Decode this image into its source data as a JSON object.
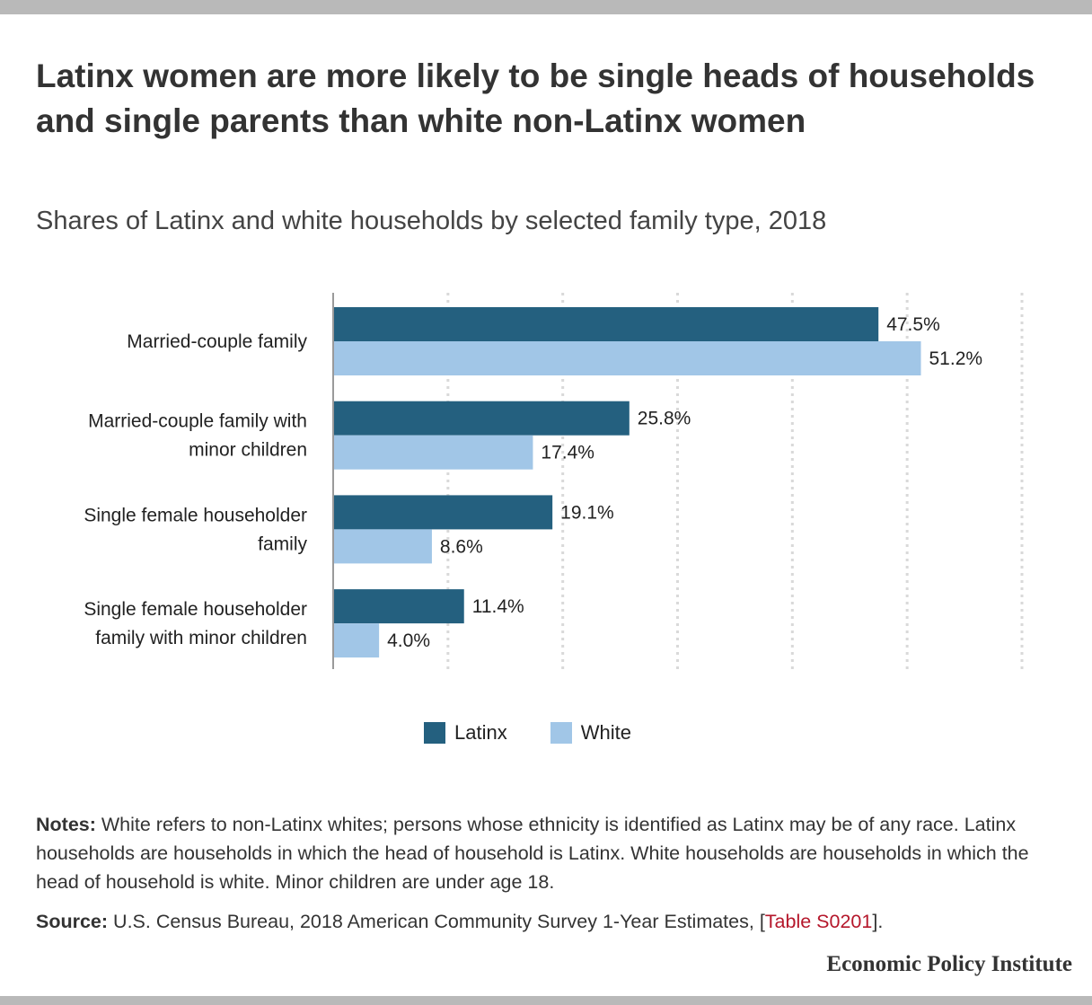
{
  "title": "Latinx women are more likely to be single heads of households and single parents than white non-Latinx women",
  "subtitle": "Shares of Latinx and white households by selected family type, 2018",
  "chart_data": {
    "type": "bar",
    "orientation": "horizontal",
    "categories": [
      [
        "Married-couple family"
      ],
      [
        "Married-couple family with",
        "minor children"
      ],
      [
        "Single female householder",
        "family"
      ],
      [
        "Single female householder",
        "family with minor children"
      ]
    ],
    "series": [
      {
        "name": "Latinx",
        "color": "#24607f",
        "values": [
          47.5,
          25.8,
          19.1,
          11.4
        ],
        "labels": [
          "47.5%",
          "25.8%",
          "19.1%",
          "11.4%"
        ]
      },
      {
        "name": "White",
        "color": "#a1c6e7",
        "values": [
          51.2,
          17.4,
          8.6,
          4.0
        ],
        "labels": [
          "51.2%",
          "17.4%",
          "8.6%",
          "4.0%"
        ]
      }
    ],
    "xlim": [
      0,
      60
    ],
    "grid": true,
    "legend": "bottom-center"
  },
  "legend": {
    "latinx": "Latinx",
    "white": "White"
  },
  "notes": {
    "lead": "Notes:",
    "text": " White refers to non-Latinx whites; persons whose ethnicity is identified as Latinx may be of any race. Latinx households are households in which the head of household is Latinx. White households are households in which the head of household is white. Minor children are under age 18."
  },
  "source": {
    "lead": "Source:",
    "text": " U.S. Census Bureau, 2018 American Community Survey 1-Year Estimates, [",
    "link": "Table S0201",
    "end": "]."
  },
  "logo": "Economic Policy Institute"
}
